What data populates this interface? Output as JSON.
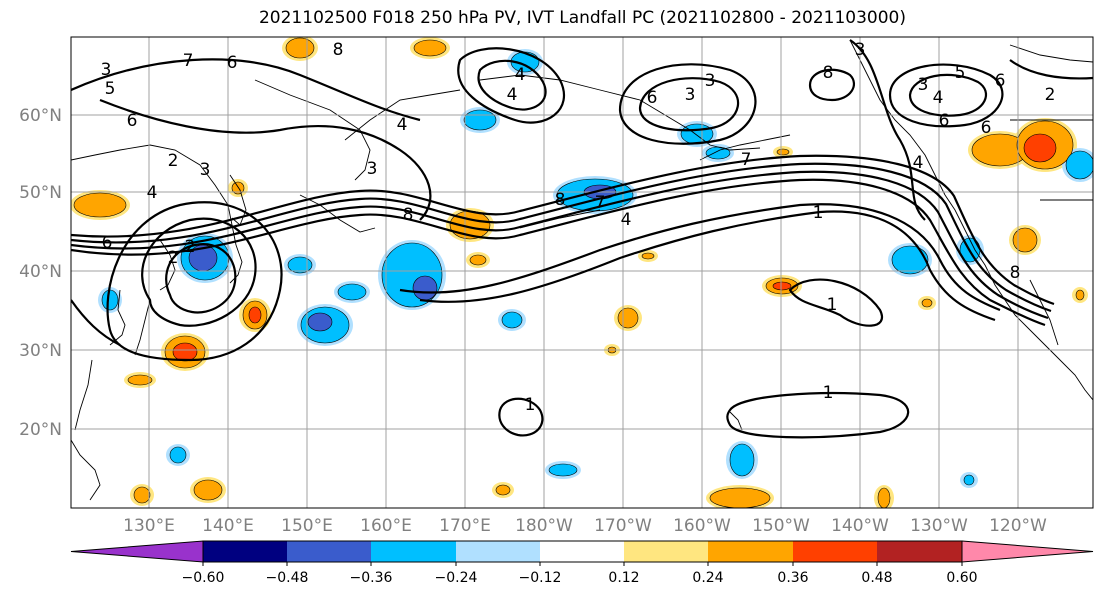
{
  "title": "2021102500 F018 250 hPa PV, IVT Landfall PC (2021102800 - 2021103000)",
  "lat_labels": [
    "60°N",
    "50°N",
    "40°N",
    "30°N",
    "20°N"
  ],
  "lon_labels": [
    "130°E",
    "140°E",
    "150°E",
    "160°E",
    "170°E",
    "180°W",
    "170°W",
    "160°W",
    "150°W",
    "140°W",
    "130°W",
    "120°W"
  ],
  "colorbar": {
    "ticks": [
      "−0.60",
      "−0.48",
      "−0.36",
      "−0.24",
      "−0.12",
      "0.12",
      "0.24",
      "0.36",
      "0.48",
      "0.60"
    ],
    "colors": [
      "#9932cc",
      "#000080",
      "#3a5ccc",
      "#00bfff",
      "#b0e0ff",
      "#ffffff",
      "#ffe680",
      "#ffa500",
      "#ff4000",
      "#b22222",
      "#ff88aa"
    ]
  },
  "shading_colors": {
    "neg_strong": "#3a5ccc",
    "neg_mid": "#00bfff",
    "neg_weak": "#b0e0ff",
    "pos_weak": "#ffe680",
    "pos_mid": "#ffa500",
    "pos_strong": "#ff4000"
  },
  "contour_labels": [
    "8",
    "6",
    "7",
    "5",
    "3",
    "6",
    "2",
    "3",
    "4",
    "6",
    "4",
    "8",
    "3",
    "4",
    "4",
    "3",
    "6",
    "7",
    "7",
    "8",
    "3",
    "3",
    "4",
    "6",
    "5",
    "6",
    "8",
    "4",
    "2",
    "2",
    "6",
    "3",
    "2",
    "4",
    "1",
    "1",
    "1",
    "1",
    "8"
  ]
}
